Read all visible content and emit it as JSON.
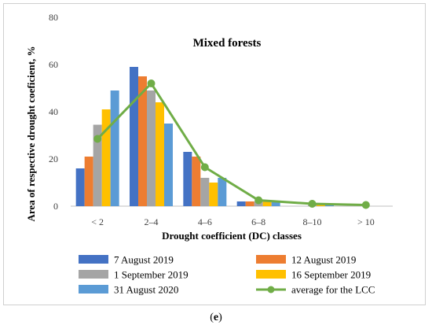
{
  "caption": {
    "prefix": "(",
    "letter": "e",
    "suffix": ")"
  },
  "chart_data": {
    "type": "bar",
    "title": "Mixed forests",
    "xlabel": "Drought coefficient  (DC) classes",
    "ylabel": "Area of respective  drought coeficient,  %",
    "categories": [
      "< 2",
      "2–4",
      "4–6",
      "6–8",
      "8–10",
      "> 10"
    ],
    "ylim": [
      0,
      80
    ],
    "yticks": [
      0,
      20,
      40,
      60,
      80
    ],
    "grid": false,
    "legend_position": "bottom",
    "series": [
      {
        "name": "7 August 2019",
        "type": "bar",
        "color": "#4472C4",
        "values": [
          16,
          59,
          23,
          2,
          0,
          0
        ]
      },
      {
        "name": "12 August 2019",
        "type": "bar",
        "color": "#ED7D31",
        "values": [
          21,
          55,
          21,
          2,
          0,
          0
        ]
      },
      {
        "name": "1 September 2019",
        "type": "bar",
        "color": "#A5A5A5",
        "values": [
          34.5,
          49,
          12,
          2,
          0.5,
          0
        ]
      },
      {
        "name": "16 September 2019",
        "type": "bar",
        "color": "#FFC000",
        "values": [
          41,
          44,
          10,
          2,
          0.5,
          0
        ]
      },
      {
        "name": "31 August 2020",
        "type": "bar",
        "color": "#5B9BD5",
        "values": [
          49,
          35,
          12,
          2,
          0.5,
          0
        ]
      },
      {
        "name": "average for the LCC",
        "type": "line",
        "color": "#70AD47",
        "values": [
          28.5,
          52,
          16.5,
          2.5,
          1,
          0.5
        ]
      }
    ]
  }
}
